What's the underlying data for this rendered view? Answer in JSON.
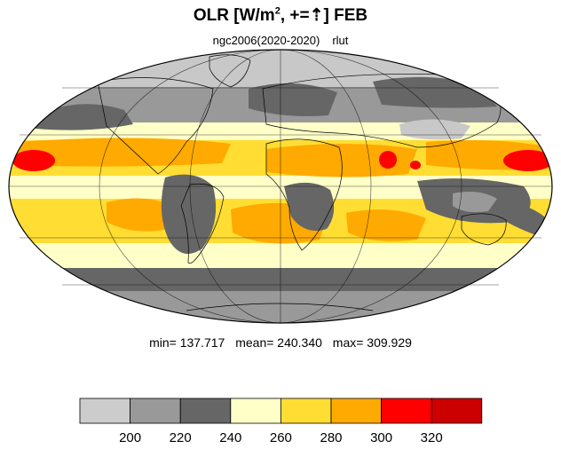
{
  "title": {
    "prefix": "OLR [W/m",
    "sup": "2",
    "suffix": ", +=",
    "arrow": "⇡",
    "end": "] FEB"
  },
  "subtitle": {
    "left": "ngc2006(2020-2020)",
    "right": "rlut"
  },
  "stats": {
    "min": "min= 137.717",
    "mean": "mean= 240.340",
    "max": "max= 309.929"
  },
  "colorbar": {
    "colors": [
      "#cccccc",
      "#999999",
      "#666666",
      "#ffffc8",
      "#ffdd33",
      "#ffaa00",
      "#ff0000",
      "#cc0000"
    ],
    "ticks": [
      "200",
      "220",
      "240",
      "260",
      "280",
      "300",
      "320"
    ]
  },
  "map": {
    "colors": {
      "polar_light": "#c8c8c8",
      "mid_gray": "#999999",
      "dark_gray": "#666666",
      "pale_yellow": "#ffffc8",
      "yellow": "#ffdd33",
      "orange": "#ffaa00",
      "red": "#ff0000"
    }
  }
}
